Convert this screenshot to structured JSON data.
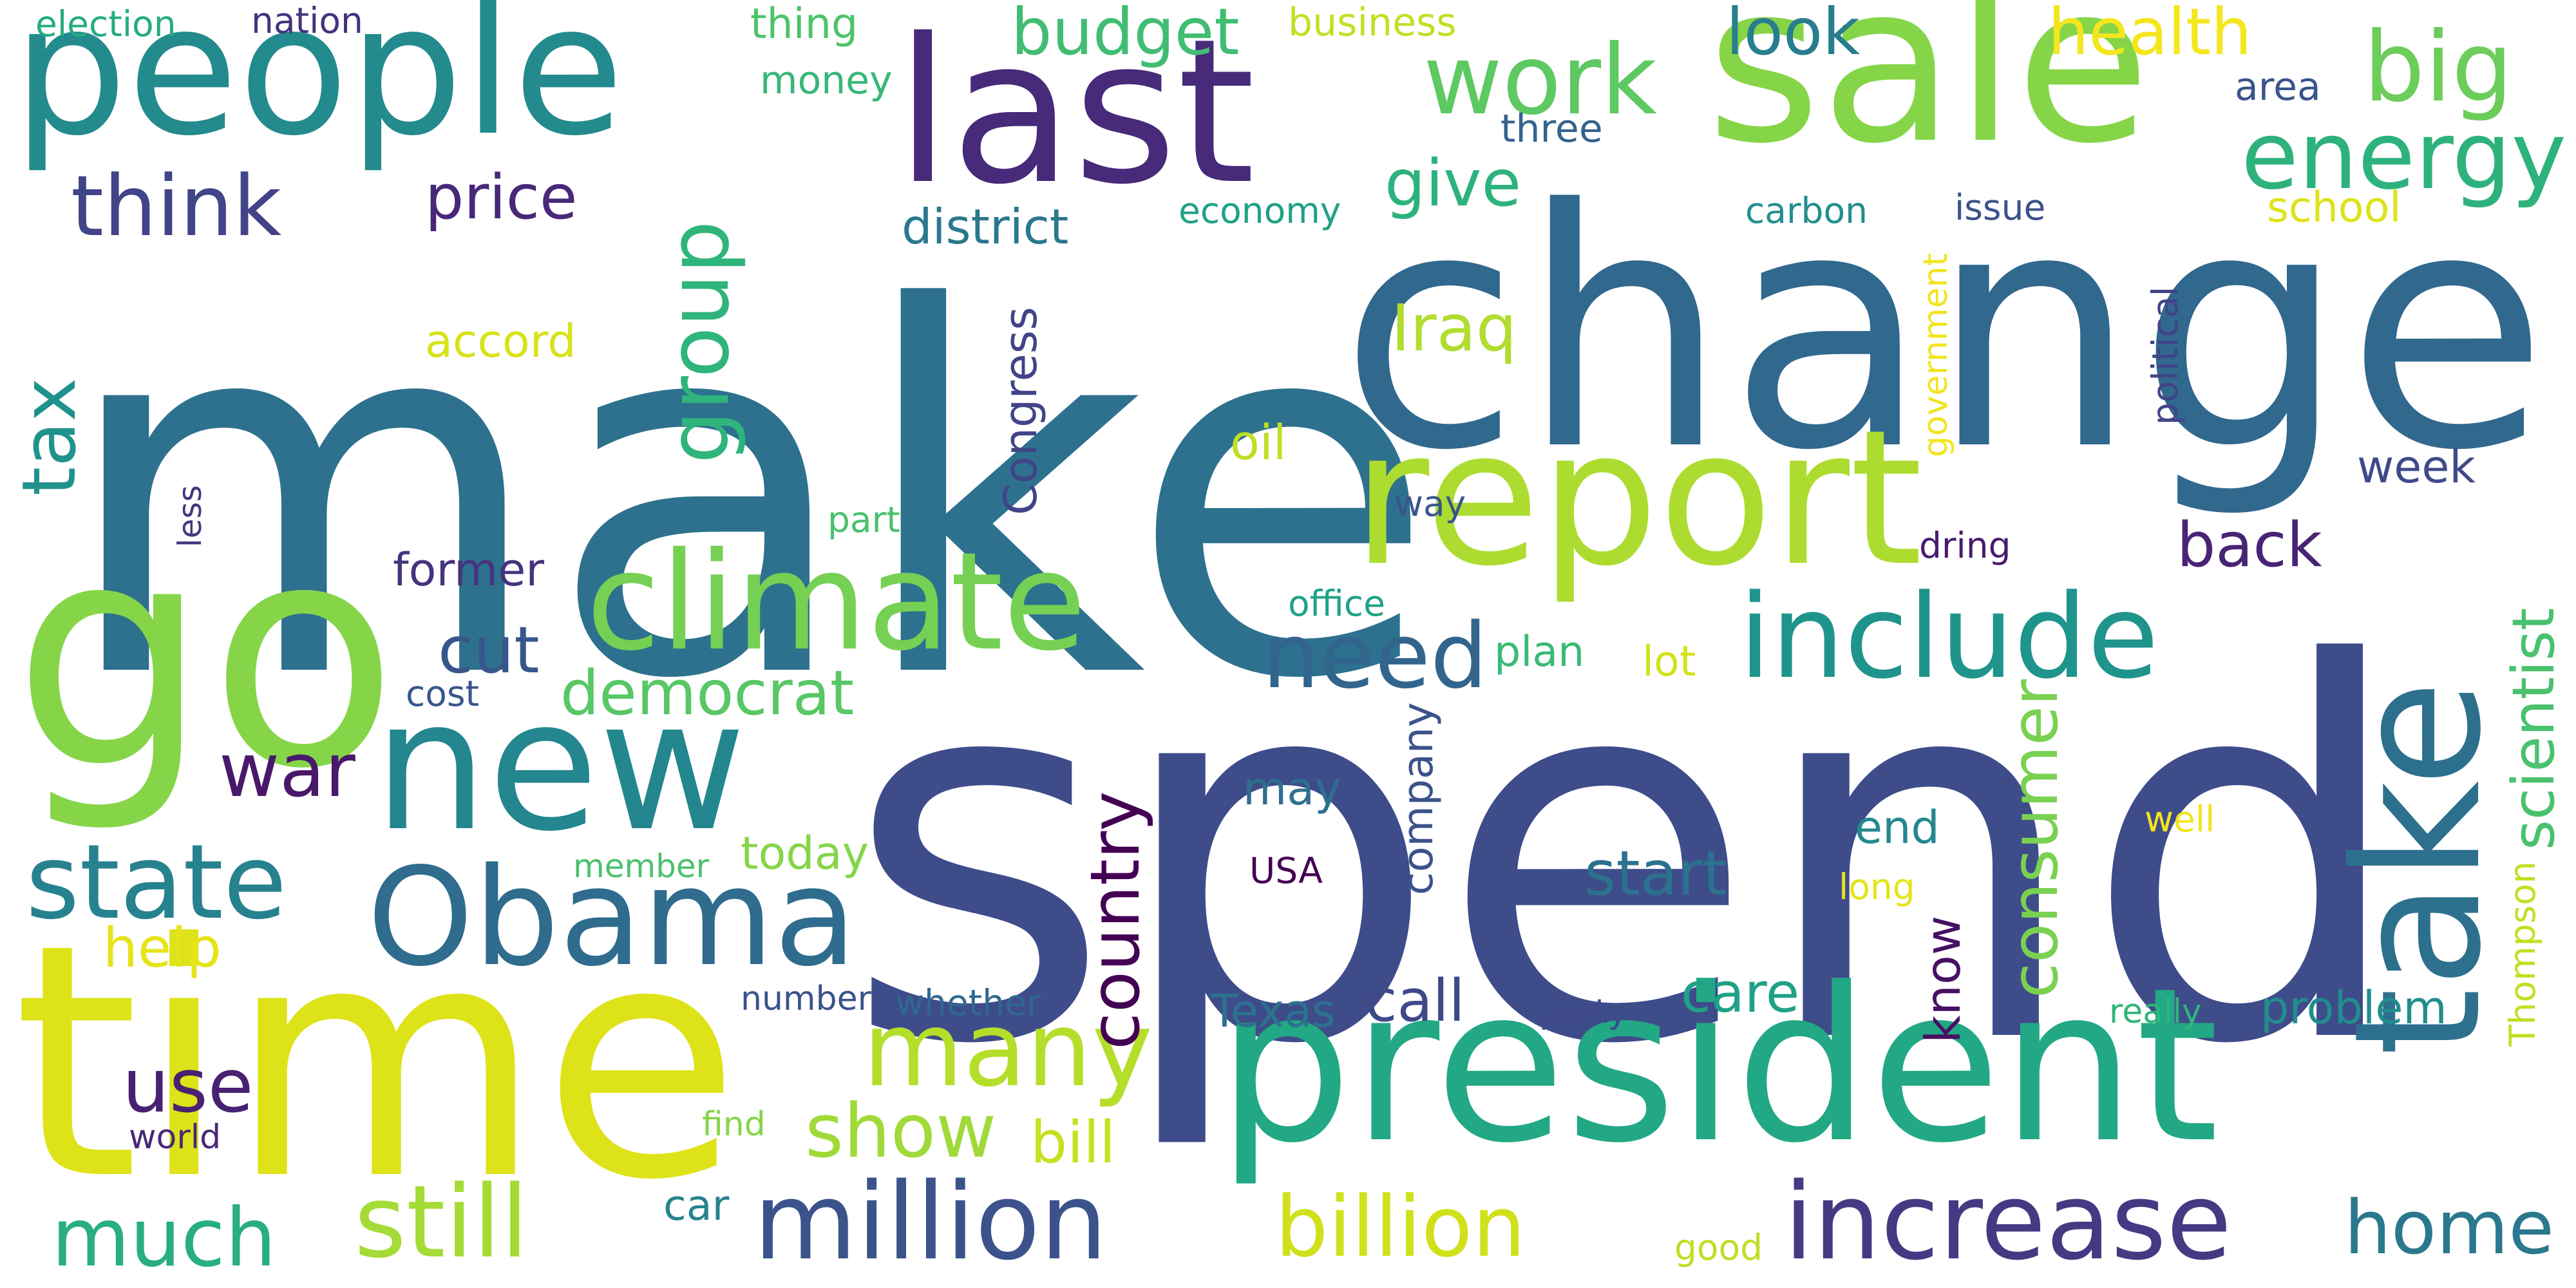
{
  "words": [
    {
      "text": "make",
      "color": "#2d718e"
    },
    {
      "text": "spend",
      "color": "#3e4c8a"
    },
    {
      "text": "change",
      "color": "#31688e"
    },
    {
      "text": "time",
      "color": "#dde318"
    },
    {
      "text": "president",
      "color": "#22a884"
    },
    {
      "text": "go",
      "color": "#86d549"
    },
    {
      "text": "sale",
      "color": "#86d549"
    },
    {
      "text": "last",
      "color": "#472a7a"
    },
    {
      "text": "people",
      "color": "#238a8d"
    },
    {
      "text": "report",
      "color": "#addc30"
    },
    {
      "text": "take",
      "color": "#2d708e"
    },
    {
      "text": "new",
      "color": "#24868e"
    },
    {
      "text": "climate",
      "color": "#75d054"
    },
    {
      "text": "Obama",
      "color": "#2f6c8e"
    },
    {
      "text": "include",
      "color": "#1f948c"
    },
    {
      "text": "million",
      "color": "#3b528b"
    },
    {
      "text": "increase",
      "color": "#443a83"
    },
    {
      "text": "still",
      "color": "#a5db36"
    },
    {
      "text": "billion",
      "color": "#d0e11c"
    },
    {
      "text": "state",
      "color": "#26828e"
    },
    {
      "text": "many",
      "color": "#b5de2b"
    },
    {
      "text": "much",
      "color": "#28ae80"
    },
    {
      "text": "need",
      "color": "#32658e"
    },
    {
      "text": "energy",
      "color": "#2db27d"
    },
    {
      "text": "work",
      "color": "#5ec962"
    },
    {
      "text": "think",
      "color": "#414487"
    },
    {
      "text": "big",
      "color": "#6ccd5a"
    },
    {
      "text": "war",
      "color": "#48186a"
    },
    {
      "text": "show",
      "color": "#a0da39"
    },
    {
      "text": "use",
      "color": "#482173"
    },
    {
      "text": "home",
      "color": "#2a788e"
    },
    {
      "text": "cut",
      "color": "#39568c"
    },
    {
      "text": "democrat",
      "color": "#58c765"
    },
    {
      "text": "group",
      "color": "#2fb47c"
    },
    {
      "text": "tax",
      "color": "#20928c"
    },
    {
      "text": "budget",
      "color": "#40bd72"
    },
    {
      "text": "look",
      "color": "#287d8e"
    },
    {
      "text": "health",
      "color": "#f4e61e"
    },
    {
      "text": "price",
      "color": "#482878"
    },
    {
      "text": "give",
      "color": "#2db27d"
    },
    {
      "text": "Iraq",
      "color": "#b0dd2f"
    },
    {
      "text": "country",
      "color": "#440154"
    },
    {
      "text": "consumer",
      "color": "#7ad151"
    },
    {
      "text": "scientist",
      "color": "#4ac16d"
    },
    {
      "text": "back",
      "color": "#482475"
    },
    {
      "text": "start",
      "color": "#2c728e"
    },
    {
      "text": "call",
      "color": "#3e4989"
    },
    {
      "text": "care",
      "color": "#1fa187"
    },
    {
      "text": "bill",
      "color": "#c8e020"
    },
    {
      "text": "help",
      "color": "#e5e419"
    },
    {
      "text": "Congress",
      "color": "#414487"
    },
    {
      "text": "company",
      "color": "#3b528b"
    },
    {
      "text": "today",
      "color": "#86d549"
    },
    {
      "text": "former",
      "color": "#46337e"
    },
    {
      "text": "oil",
      "color": "#bddf26"
    },
    {
      "text": "district",
      "color": "#2a788e"
    },
    {
      "text": "accord",
      "color": "#d8e219"
    },
    {
      "text": "problem",
      "color": "#228d8d"
    },
    {
      "text": "Texas",
      "color": "#2c728e"
    },
    {
      "text": "know",
      "color": "#471063"
    },
    {
      "text": "end",
      "color": "#23888e"
    },
    {
      "text": "week",
      "color": "#3e4a89"
    },
    {
      "text": "plan",
      "color": "#3aba76"
    },
    {
      "text": "lot",
      "color": "#d2e21b"
    },
    {
      "text": "may",
      "color": "#2e6f8e"
    },
    {
      "text": "thing",
      "color": "#4ec36b"
    },
    {
      "text": "business",
      "color": "#c2df23"
    },
    {
      "text": "money",
      "color": "#35b779"
    },
    {
      "text": "nation",
      "color": "#46337e"
    },
    {
      "text": "election",
      "color": "#25ab82"
    },
    {
      "text": "three",
      "color": "#33638d"
    },
    {
      "text": "area",
      "color": "#3a548c"
    },
    {
      "text": "economy",
      "color": "#1fa187"
    },
    {
      "text": "carbon",
      "color": "#218f8d"
    },
    {
      "text": "issue",
      "color": "#3b528b"
    },
    {
      "text": "school",
      "color": "#dde318"
    },
    {
      "text": "government",
      "color": "#f1e51d"
    },
    {
      "text": "political",
      "color": "#414487"
    },
    {
      "text": "way",
      "color": "#39568c"
    },
    {
      "text": "part",
      "color": "#4ac16d"
    },
    {
      "text": "office",
      "color": "#1fa187"
    },
    {
      "text": "dring",
      "color": "#481b6d"
    },
    {
      "text": "less",
      "color": "#453781"
    },
    {
      "text": "cost",
      "color": "#39568c"
    },
    {
      "text": "member",
      "color": "#4ac16d"
    },
    {
      "text": "USA",
      "color": "#440154"
    },
    {
      "text": "well",
      "color": "#f1e51d"
    },
    {
      "text": "long",
      "color": "#e5e419"
    },
    {
      "text": "Thompson",
      "color": "#c2df23"
    },
    {
      "text": "number",
      "color": "#3b528b"
    },
    {
      "text": "whether",
      "color": "#31688e"
    },
    {
      "text": "party",
      "color": "#3e4a89"
    },
    {
      "text": "really",
      "color": "#2fb47c"
    },
    {
      "text": "world",
      "color": "#482878"
    },
    {
      "text": "find",
      "color": "#86d549"
    },
    {
      "text": "car",
      "color": "#26828e"
    },
    {
      "text": "good",
      "color": "#bddf26"
    }
  ]
}
